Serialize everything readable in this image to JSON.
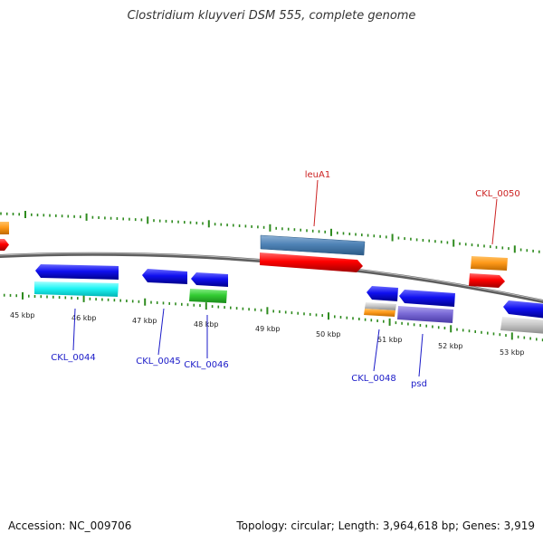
{
  "map": {
    "title": "Clostridium kluyveri DSM 555, complete genome",
    "accession": "Accession: NC_009706",
    "summary": "Topology: circular; Length: 3,964,618 bp; Genes: 3,919"
  },
  "colors": {
    "backbone": "#777777",
    "tick": "#2e8b1e",
    "forward_label": "#cc2222",
    "reverse_label": "#1a1ac8"
  },
  "scale": {
    "unit": "kbp",
    "labels": [
      "45 kbp",
      "46 kbp",
      "47 kbp",
      "48 kbp",
      "49 kbp",
      "50 kbp",
      "51 kbp",
      "52 kbp",
      "53 kbp"
    ]
  },
  "gene_labels": {
    "leuA1": "leuA1",
    "ckl0050": "CKL_0050",
    "ckl0044": "CKL_0044",
    "ckl0045": "CKL_0045",
    "ckl0046": "CKL_0046",
    "ckl0048": "CKL_0048",
    "psd": "psd"
  }
}
